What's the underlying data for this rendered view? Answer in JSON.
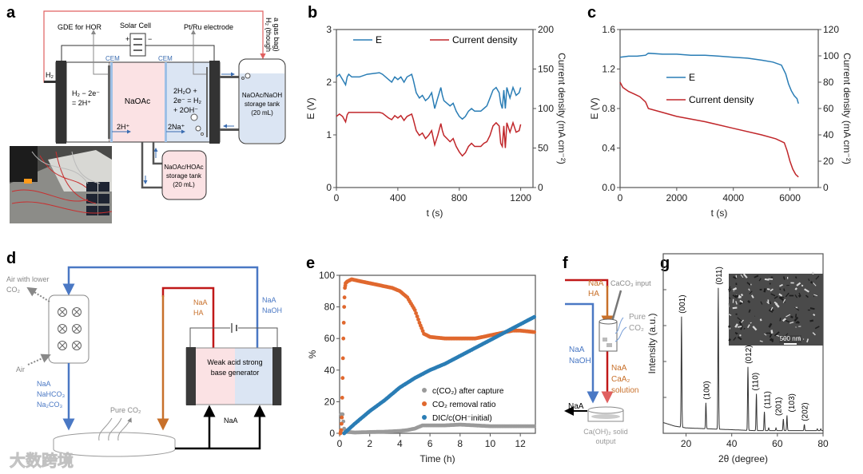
{
  "panel_labels": {
    "a": "a",
    "b": "b",
    "c": "c",
    "d": "d",
    "e": "e",
    "f": "f",
    "g": "g"
  },
  "panel_a": {
    "gde_label": "GDE for HOR",
    "solar_label": "Solar Cell",
    "ptru_label": "Pt/Ru electrode",
    "plus": "+",
    "minus": "−",
    "cem_left": "CEM",
    "cem_right": "CEM",
    "h2_inlet": "H₂",
    "h2_gasbag_1": "H₂ (though",
    "h2_gasbag_2": "a gas bag)",
    "anode_rxn_1": "H₂ − 2e⁻",
    "anode_rxn_2": "= 2H⁺",
    "middle": "NaOAc",
    "cathode_rxn_1": "2H₂O +",
    "cathode_rxn_2": "2e⁻ = H₂",
    "cathode_rxn_3": "+ 2OH⁻",
    "proton_flux": "2H⁺",
    "sodium_flux": "2Na⁺",
    "tank_right": [
      "NaOAc/NaOH",
      "storage tank",
      "(20 mL)"
    ],
    "tank_bottom": [
      "NaOAc/HOAc",
      "storage tank",
      "(20 mL)"
    ]
  },
  "panel_d": {
    "air_lower_1": "Air with lower",
    "air_lower_2": "CO₂",
    "air": "Air",
    "out_species": [
      "NaA",
      "NaHCO₃",
      "Na₂CO₃"
    ],
    "acid_species": [
      "NaA",
      "HA"
    ],
    "base_species": [
      "NaA",
      "NaOH"
    ],
    "generator_1": "Weak acid strong",
    "generator_2": "base generator",
    "pure_co2": "Pure CO₂",
    "recycle": "NaA"
  },
  "panel_f": {
    "acid_species": [
      "NaA",
      "HA"
    ],
    "caco3": "CaCO₃ input",
    "pure_co2": [
      "Pure",
      "CO₂"
    ],
    "base_species": [
      "NaA",
      "NaOH"
    ],
    "solution": [
      "NaA",
      "CaA₂",
      "solution"
    ],
    "naa_out": "NaA",
    "solid_output": [
      "Ca(OH)₂ solid",
      "output"
    ]
  },
  "watermark": "大数跨境",
  "colors": {
    "blue": "#2a7db5",
    "red": "#c0262a",
    "orange": "#e0682e",
    "grey": "#9a9a9a",
    "scheme_blue": "#4a78c4",
    "scheme_orange": "#c8702a",
    "scheme_red": "#c01818"
  },
  "chart_data": [
    {
      "id": "b",
      "type": "line",
      "xlabel": "t (s)",
      "ylabel": "E (V)",
      "y2label": "Current density (mA cm⁻²)",
      "xlim": [
        0,
        1280
      ],
      "ylim": [
        0,
        3
      ],
      "y2lim": [
        0,
        200
      ],
      "xticks": [
        0,
        400,
        800,
        1200
      ],
      "yticks": [
        0,
        1,
        2,
        3
      ],
      "y2ticks": [
        0,
        50,
        100,
        150,
        200
      ],
      "legend": "top",
      "series": [
        {
          "name": "E",
          "axis": "left",
          "color": "#2a7db5",
          "x": [
            0,
            20,
            40,
            60,
            70,
            80,
            100,
            150,
            200,
            280,
            300,
            340,
            360,
            380,
            400,
            420,
            440,
            460,
            490,
            500,
            520,
            540,
            560,
            580,
            600,
            620,
            640,
            660,
            680,
            690,
            700,
            720,
            740,
            760,
            780,
            800,
            820,
            840,
            860,
            880,
            900,
            940,
            960,
            980,
            1000,
            1020,
            1040,
            1060,
            1070,
            1080,
            1090,
            1100,
            1110,
            1130,
            1150,
            1170,
            1190,
            1200
          ],
          "y": [
            2.1,
            2.15,
            2.05,
            1.95,
            2.1,
            2.15,
            2.1,
            2.1,
            2.15,
            2.18,
            2.15,
            2.05,
            2.0,
            2.1,
            2.05,
            2.1,
            2.0,
            2.1,
            2.15,
            2.05,
            1.8,
            1.7,
            1.75,
            1.65,
            1.7,
            1.8,
            1.5,
            1.7,
            1.9,
            1.75,
            1.65,
            1.6,
            1.55,
            1.6,
            1.45,
            1.35,
            1.3,
            1.35,
            1.45,
            1.5,
            1.45,
            1.45,
            1.5,
            1.55,
            1.7,
            1.85,
            1.9,
            1.8,
            1.6,
            1.5,
            1.85,
            1.5,
            1.9,
            1.7,
            1.9,
            1.75,
            1.8,
            1.9
          ]
        },
        {
          "name": "Current density",
          "axis": "right",
          "color": "#c0262a",
          "x": [
            0,
            20,
            40,
            60,
            70,
            80,
            100,
            150,
            200,
            280,
            300,
            340,
            360,
            380,
            400,
            420,
            440,
            460,
            490,
            500,
            520,
            540,
            560,
            580,
            600,
            620,
            640,
            660,
            680,
            690,
            700,
            720,
            740,
            760,
            780,
            800,
            820,
            840,
            860,
            880,
            900,
            940,
            960,
            980,
            1000,
            1020,
            1040,
            1060,
            1070,
            1080,
            1090,
            1100,
            1110,
            1130,
            1150,
            1170,
            1190,
            1200
          ],
          "y": [
            90,
            93,
            90,
            83,
            92,
            95,
            95,
            95,
            95,
            95,
            94,
            88,
            86,
            91,
            88,
            91,
            85,
            90,
            93,
            87,
            72,
            66,
            69,
            62,
            66,
            72,
            54,
            66,
            81,
            72,
            66,
            62,
            58,
            62,
            52,
            45,
            40,
            44,
            52,
            56,
            52,
            52,
            56,
            58,
            66,
            78,
            82,
            78,
            56,
            52,
            78,
            50,
            82,
            70,
            82,
            70,
            72,
            80
          ]
        }
      ]
    },
    {
      "id": "c",
      "type": "line",
      "xlabel": "t (s)",
      "ylabel": "E (V)",
      "y2label": "Current density (mA cm⁻²)",
      "xlim": [
        0,
        7000
      ],
      "ylim": [
        0,
        1.6
      ],
      "y2lim": [
        0,
        120
      ],
      "xticks": [
        0,
        2000,
        4000,
        6000
      ],
      "yticks": [
        0.0,
        0.4,
        0.8,
        1.2,
        1.6
      ],
      "ytick_labels": [
        "0.0",
        "0.4",
        "0.8",
        "1.2",
        "1.6"
      ],
      "y2ticks": [
        0,
        20,
        40,
        60,
        80,
        100,
        120
      ],
      "legend": "center",
      "series": [
        {
          "name": "E",
          "axis": "left",
          "color": "#2a7db5",
          "x": [
            0,
            300,
            600,
            900,
            1000,
            1500,
            2000,
            2500,
            3000,
            3500,
            4000,
            4500,
            5000,
            5400,
            5700,
            5850,
            5950,
            6050,
            6150,
            6250,
            6300
          ],
          "y": [
            1.32,
            1.33,
            1.33,
            1.34,
            1.36,
            1.35,
            1.35,
            1.34,
            1.34,
            1.33,
            1.32,
            1.31,
            1.29,
            1.27,
            1.24,
            1.15,
            1.05,
            0.98,
            0.93,
            0.9,
            0.85
          ]
        },
        {
          "name": "Current density",
          "axis": "right",
          "color": "#c0262a",
          "x": [
            0,
            100,
            300,
            500,
            700,
            900,
            1000,
            1500,
            2000,
            3000,
            4000,
            5000,
            5500,
            5800,
            5900,
            6000,
            6100,
            6200,
            6300
          ],
          "y": [
            80,
            76,
            73,
            71,
            69,
            65,
            60,
            57,
            54,
            50,
            45,
            40,
            37,
            34,
            28,
            20,
            14,
            10,
            8
          ]
        }
      ]
    },
    {
      "id": "e",
      "type": "scatter",
      "xlabel": "Time (h)",
      "ylabel": "%",
      "xlim": [
        0,
        13
      ],
      "ylim": [
        0,
        100
      ],
      "xticks": [
        0,
        2,
        4,
        6,
        8,
        10,
        12
      ],
      "yticks": [
        0,
        20,
        40,
        60,
        80,
        100
      ],
      "legend": "bottom-right",
      "series": [
        {
          "name": "c(CO₂) after capture",
          "color": "#9a9a9a",
          "x": [
            0.1,
            0.2,
            0.3,
            0.4,
            1,
            2,
            3,
            4,
            4.5,
            5,
            5.5,
            6,
            7,
            8,
            9,
            10,
            11,
            12,
            13
          ],
          "y": [
            12,
            12,
            3,
            1,
            0.5,
            0.8,
            1,
            1.5,
            2,
            3,
            5,
            5,
            5,
            5.5,
            5,
            4.5,
            4.5,
            4.5,
            4.5
          ]
        },
        {
          "name": "CO₂ removal ratio",
          "color": "#e0682e",
          "x": [
            0.05,
            0.1,
            0.15,
            0.2,
            0.25,
            0.3,
            0.35,
            0.4,
            0.5,
            0.8,
            1,
            2,
            3,
            3.5,
            4,
            4.5,
            5,
            5.3,
            5.6,
            6,
            7,
            8,
            9,
            10,
            11,
            11.5,
            12,
            13
          ],
          "y": [
            0,
            2,
            10,
            35,
            60,
            80,
            92,
            95,
            96,
            97.5,
            97,
            95,
            93,
            92,
            90,
            86,
            78,
            70,
            63,
            61,
            60,
            60,
            60,
            62,
            64,
            65,
            65,
            64
          ]
        },
        {
          "name": "DIC/c(OH⁻initial)",
          "color": "#2a7db5",
          "x": [
            0.3,
            1,
            2,
            3,
            4,
            5,
            6,
            7,
            8,
            9,
            10,
            11,
            12,
            13
          ],
          "y": [
            0,
            6,
            14,
            21,
            29,
            35,
            40,
            44,
            49,
            54,
            59,
            64,
            69,
            74
          ]
        }
      ]
    },
    {
      "id": "g",
      "type": "line",
      "xlabel": "2θ (degree)",
      "ylabel": "Intensity (a.u.)",
      "xlim": [
        10,
        80
      ],
      "ylim": [
        0,
        100
      ],
      "xticks": [
        20,
        40,
        60,
        80
      ],
      "baseline": {
        "x": [
          10,
          15,
          20,
          30,
          40,
          50,
          60,
          70,
          80
        ],
        "y": [
          6,
          4,
          3,
          2.5,
          2,
          1.5,
          1.5,
          1.5,
          1.5
        ]
      },
      "peaks": [
        {
          "label": "(001)",
          "x": 18.0,
          "y": 65
        },
        {
          "label": "(100)",
          "x": 28.7,
          "y": 17
        },
        {
          "label": "(011)",
          "x": 34.1,
          "y": 81
        },
        {
          "label": "(012)",
          "x": 47.1,
          "y": 37
        },
        {
          "label": "(110)",
          "x": 50.8,
          "y": 22
        },
        {
          "label": "(111)",
          "x": 54.3,
          "y": 12
        },
        {
          "label": "(201)",
          "x": 62.6,
          "y": 8
        },
        {
          "label": "(103)",
          "x": 64.2,
          "y": 10
        },
        {
          "label": "(202)",
          "x": 71.8,
          "y": 5
        }
      ],
      "minor_peaks": [
        {
          "x": 56.2,
          "y": 3
        },
        {
          "x": 59.4,
          "y": 3
        },
        {
          "x": 77.5,
          "y": 2.5
        },
        {
          "x": 79,
          "y": 2.5
        }
      ],
      "inset_scale_bar": "500 nm"
    }
  ]
}
